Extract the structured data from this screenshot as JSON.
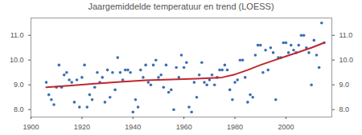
{
  "chart_data": {
    "type": "scatter",
    "title": "Jaargemiddelde temperatuur en trend (LOESS)",
    "xlim": [
      1900,
      2018
    ],
    "xticks": [
      1900,
      1920,
      1940,
      1960,
      1980,
      2000
    ],
    "ylim": [
      7.7,
      11.7
    ],
    "yticks": [
      {
        "value": 8,
        "label": "8.0"
      },
      {
        "value": 9,
        "label": "9.0"
      },
      {
        "value": 10,
        "label": "10.0"
      },
      {
        "value": 11,
        "label": "11.0"
      }
    ],
    "grid": false,
    "series": [
      {
        "type": "scatter",
        "color": "#3b6db3",
        "marker": "circle",
        "x": [
          1906,
          1907,
          1908,
          1909,
          1910,
          1911,
          1912,
          1913,
          1914,
          1915,
          1916,
          1917,
          1918,
          1919,
          1920,
          1921,
          1922,
          1923,
          1924,
          1925,
          1926,
          1927,
          1928,
          1929,
          1930,
          1931,
          1932,
          1933,
          1934,
          1935,
          1936,
          1937,
          1938,
          1939,
          1940,
          1941,
          1942,
          1943,
          1944,
          1945,
          1946,
          1947,
          1948,
          1949,
          1950,
          1951,
          1952,
          1953,
          1954,
          1955,
          1956,
          1957,
          1958,
          1959,
          1960,
          1961,
          1962,
          1963,
          1964,
          1965,
          1966,
          1967,
          1968,
          1969,
          1970,
          1971,
          1972,
          1973,
          1974,
          1975,
          1976,
          1977,
          1978,
          1979,
          1980,
          1981,
          1982,
          1983,
          1984,
          1985,
          1986,
          1987,
          1988,
          1989,
          1990,
          1991,
          1992,
          1993,
          1994,
          1995,
          1996,
          1997,
          1998,
          1999,
          2000,
          2001,
          2002,
          2003,
          2004,
          2005,
          2006,
          2007,
          2008,
          2009,
          2010,
          2011,
          2012,
          2013,
          2014,
          2015
        ],
        "values": [
          9.1,
          8.6,
          8.4,
          8.2,
          8.9,
          9.8,
          8.9,
          9.4,
          9.5,
          9.2,
          9.1,
          8.3,
          9.2,
          8.1,
          9.3,
          9.8,
          8.1,
          8.6,
          8.4,
          8.9,
          9.5,
          9.1,
          9.3,
          8.3,
          9.6,
          8.5,
          9.5,
          8.8,
          10.1,
          9.5,
          9.2,
          9.6,
          9.6,
          9.5,
          7.9,
          8.4,
          8.1,
          9.6,
          9.3,
          9.8,
          9.1,
          9.0,
          9.8,
          10.0,
          9.3,
          9.4,
          8.9,
          9.8,
          8.7,
          8.8,
          8.0,
          9.7,
          9.3,
          10.2,
          9.7,
          9.9,
          8.1,
          7.9,
          9.1,
          8.5,
          9.4,
          9.9,
          9.1,
          9.0,
          9.2,
          9.4,
          9.0,
          9.3,
          9.6,
          9.6,
          9.8,
          9.6,
          8.8,
          8.4,
          9.1,
          9.2,
          10.0,
          10.0,
          9.3,
          8.3,
          8.6,
          8.5,
          10.2,
          10.6,
          10.6,
          9.5,
          10.4,
          9.6,
          10.5,
          10.3,
          8.4,
          10.1,
          10.1,
          10.7,
          10.7,
          10.3,
          10.6,
          10.4,
          10.3,
          10.6,
          11.0,
          11.0,
          10.5,
          10.3,
          9.0,
          10.8,
          10.2,
          9.7,
          11.5,
          10.7
        ]
      },
      {
        "type": "line",
        "color": "#c1272d",
        "line_style": "solid",
        "x": [
          1906,
          1915,
          1925,
          1935,
          1945,
          1955,
          1965,
          1975,
          1980,
          1985,
          1990,
          1995,
          2000,
          2005,
          2010,
          2015
        ],
        "values": [
          8.9,
          8.97,
          9.05,
          9.12,
          9.18,
          9.22,
          9.25,
          9.3,
          9.42,
          9.6,
          9.8,
          9.98,
          10.15,
          10.32,
          10.5,
          10.7
        ]
      }
    ]
  }
}
